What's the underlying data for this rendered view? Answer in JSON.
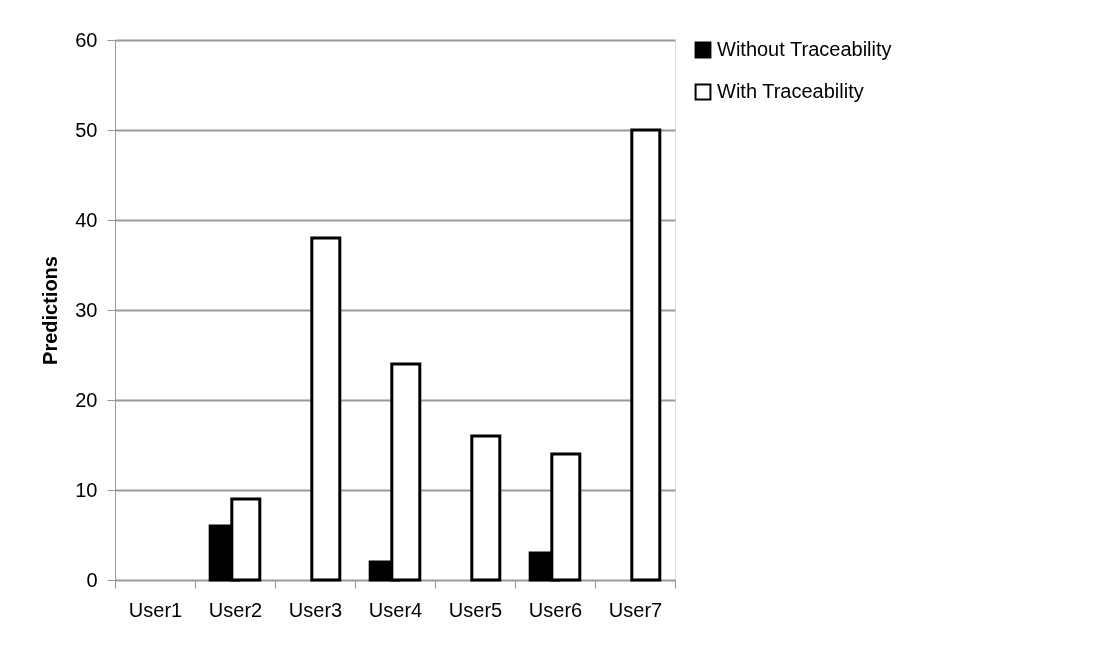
{
  "chart_data": {
    "type": "bar",
    "ylabel": "Predictions",
    "categories": [
      "User1",
      "User2",
      "User3",
      "User4",
      "User5",
      "User6",
      "User7"
    ],
    "series": [
      {
        "name": "Without Traceability",
        "color": "#000000",
        "values": [
          null,
          6,
          null,
          2,
          null,
          3,
          null
        ]
      },
      {
        "name": "With Traceability",
        "color": "#ffffff",
        "values": [
          null,
          9,
          38,
          24,
          16,
          14,
          50
        ]
      }
    ],
    "ylim": [
      0,
      60
    ],
    "yticks": [
      0,
      10,
      20,
      30,
      40,
      50,
      60
    ],
    "grid": "y",
    "legend": "right"
  }
}
